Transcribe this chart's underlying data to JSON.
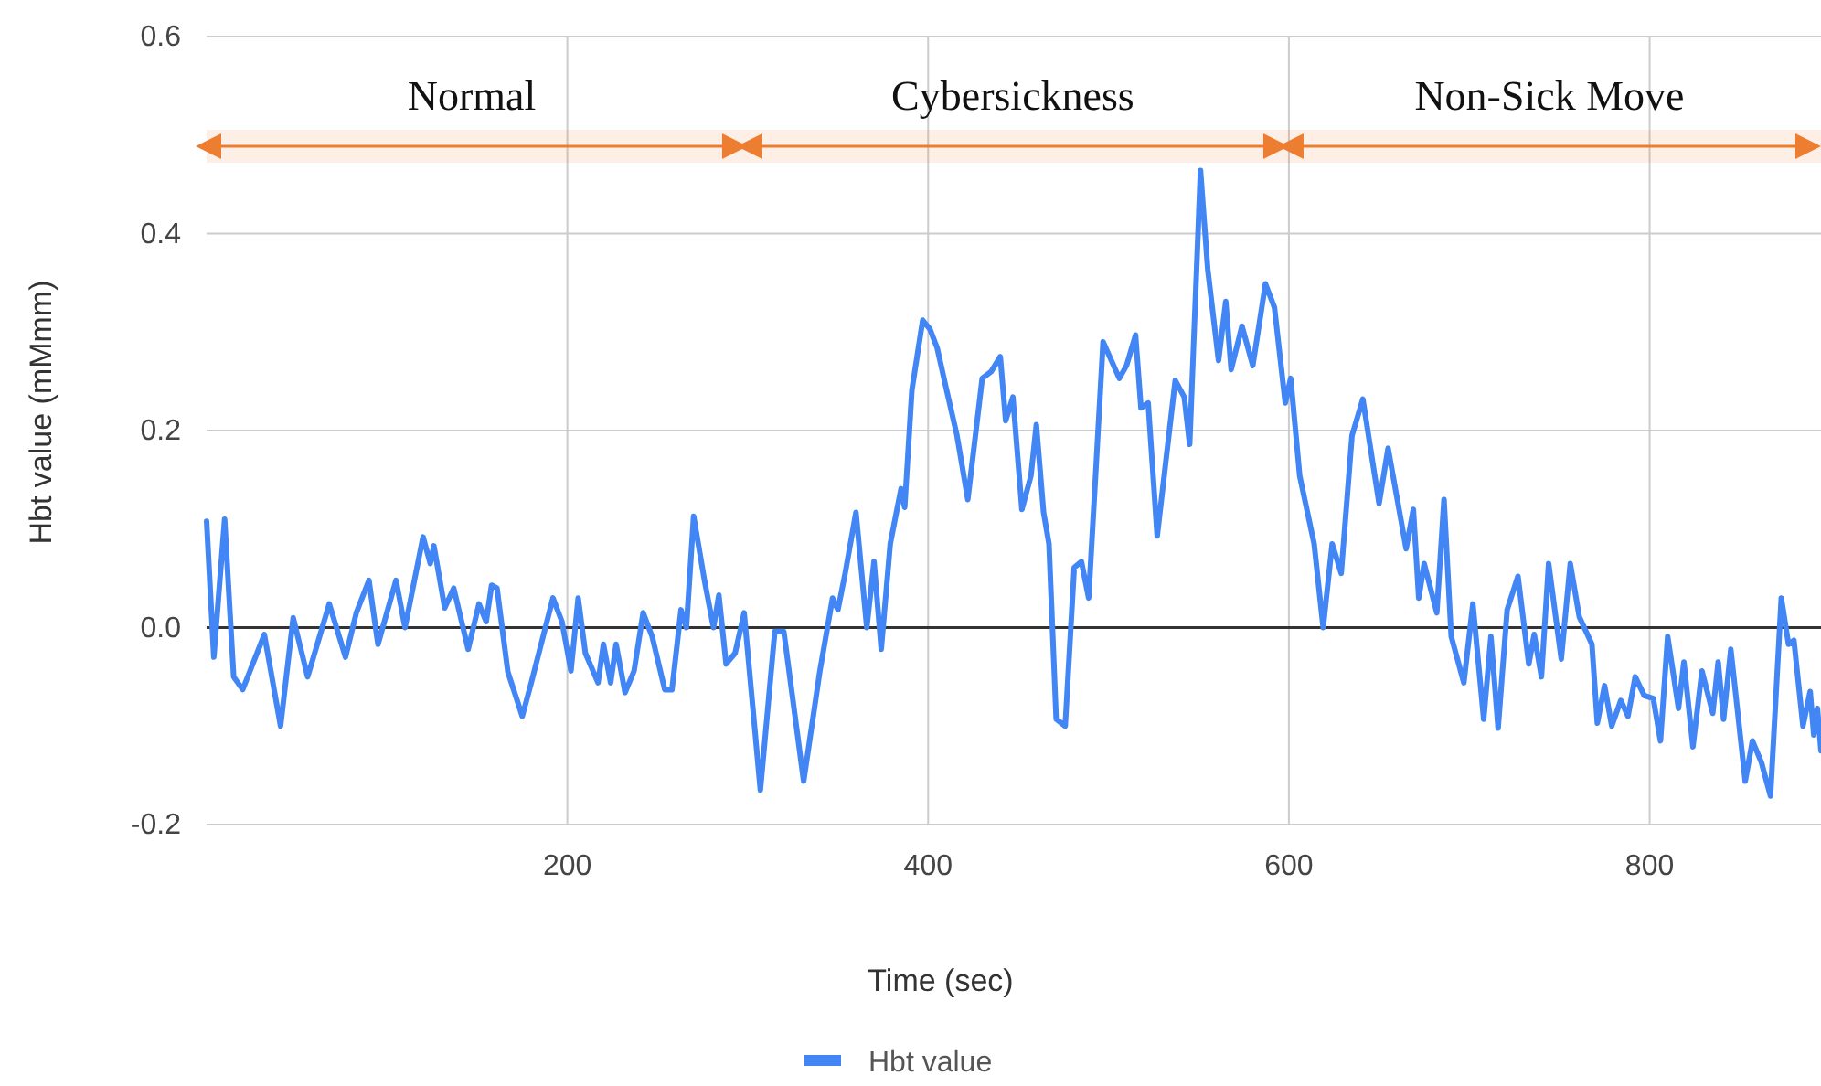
{
  "chart_data": {
    "type": "line",
    "xlabel": "Time (sec)",
    "ylabel": "Hbt value (mMmm)",
    "xlim": [
      0,
      895
    ],
    "xticks": [
      200,
      400,
      600,
      800
    ],
    "ylim": [
      -0.2,
      0.6
    ],
    "yticks": [
      {
        "value": -0.2,
        "label": "-0.2"
      },
      {
        "value": 0,
        "label": "0.0"
      },
      {
        "value": 0.2,
        "label": "0.2"
      },
      {
        "value": 0.4,
        "label": "0.4"
      },
      {
        "value": 0.6,
        "label": "0.6"
      }
    ],
    "grid": true,
    "legend": "bottom",
    "marker": "none",
    "line_style": "solid",
    "ref_lines": [
      {
        "axis": "y",
        "value": 0,
        "color": "#333333"
      }
    ],
    "bands": [
      {
        "axis": "x",
        "from": 0,
        "to": 300,
        "label": "Normal",
        "color": "#ed7d31"
      },
      {
        "axis": "x",
        "from": 300,
        "to": 600,
        "label": "Cybersickness",
        "color": "#ed7d31"
      },
      {
        "axis": "x",
        "from": 600,
        "to": 895,
        "label": "Non-Sick Move",
        "color": "#ed7d31"
      }
    ],
    "series": [
      {
        "name": "Hbt value",
        "color": "#4285f4",
        "x": [
          0,
          4,
          10,
          15,
          20,
          32,
          41,
          48,
          56,
          68,
          77,
          83,
          90,
          95,
          105,
          110,
          120,
          124,
          126,
          132,
          137,
          145,
          151,
          155,
          158,
          161,
          167,
          175,
          180,
          192,
          197,
          202,
          206,
          210,
          217,
          220,
          224,
          227,
          232,
          237,
          242,
          247,
          254,
          258,
          263,
          266,
          270,
          276,
          281,
          284,
          288,
          293,
          298,
          307,
          315,
          320,
          331,
          340,
          347,
          350,
          354,
          360,
          366,
          370,
          374,
          379,
          385,
          387,
          391,
          397,
          401,
          405,
          410,
          416,
          422,
          430,
          435,
          440,
          443,
          447,
          452,
          457,
          460,
          464,
          467,
          471,
          476,
          481,
          485,
          489,
          497,
          506,
          510,
          515,
          518,
          522,
          527,
          537,
          542,
          545,
          551,
          555,
          561,
          565,
          568,
          574,
          580,
          587,
          592,
          598,
          601,
          606,
          614,
          619,
          624,
          629,
          635,
          641,
          650,
          655,
          665,
          669,
          672,
          675,
          682,
          686,
          690,
          697,
          702,
          708,
          712,
          716,
          721,
          727,
          733,
          736,
          740,
          744,
          751,
          756,
          761,
          768,
          771,
          775,
          779,
          784,
          788,
          792,
          797,
          802,
          806,
          810,
          816,
          819,
          824,
          829,
          835,
          838,
          841,
          845,
          853,
          857,
          862,
          867,
          873,
          877,
          880,
          885,
          889,
          891,
          893,
          895
        ],
        "values": [
          0.108,
          -0.03,
          0.11,
          -0.05,
          -0.063,
          -0.007,
          -0.1,
          0.01,
          -0.05,
          0.024,
          -0.03,
          0.015,
          0.048,
          -0.017,
          0.048,
          0,
          0.092,
          0.065,
          0.083,
          0.02,
          0.04,
          -0.022,
          0.024,
          0.006,
          0.043,
          0.04,
          -0.045,
          -0.09,
          -0.056,
          0.03,
          0.006,
          -0.044,
          0.03,
          -0.026,
          -0.056,
          -0.017,
          -0.056,
          -0.017,
          -0.066,
          -0.044,
          0.015,
          -0.009,
          -0.063,
          -0.063,
          0.018,
          0,
          0.113,
          0.048,
          0,
          0.033,
          -0.037,
          -0.026,
          0.015,
          -0.165,
          -0.004,
          -0.004,
          -0.156,
          -0.044,
          0.03,
          0.018,
          0.055,
          0.117,
          0,
          0.067,
          -0.022,
          0.085,
          0.141,
          0.122,
          0.241,
          0.312,
          0.303,
          0.284,
          0.243,
          0.195,
          0.13,
          0.253,
          0.26,
          0.275,
          0.21,
          0.234,
          0.12,
          0.154,
          0.206,
          0.117,
          0.085,
          -0.093,
          -0.1,
          0.061,
          0.067,
          0.03,
          0.29,
          0.253,
          0.266,
          0.297,
          0.223,
          0.228,
          0.093,
          0.251,
          0.234,
          0.186,
          0.464,
          0.364,
          0.271,
          0.331,
          0.262,
          0.306,
          0.266,
          0.349,
          0.325,
          0.228,
          0.253,
          0.154,
          0.085,
          0,
          0.085,
          0.055,
          0.195,
          0.232,
          0.126,
          0.182,
          0.08,
          0.12,
          0.03,
          0.065,
          0.015,
          0.13,
          -0.009,
          -0.056,
          0.024,
          -0.093,
          -0.009,
          -0.102,
          0.018,
          0.052,
          -0.037,
          -0.007,
          -0.05,
          0.065,
          -0.032,
          0.065,
          0.011,
          -0.017,
          -0.097,
          -0.059,
          -0.1,
          -0.074,
          -0.09,
          -0.05,
          -0.069,
          -0.072,
          -0.115,
          -0.009,
          -0.082,
          -0.035,
          -0.121,
          -0.044,
          -0.087,
          -0.035,
          -0.093,
          -0.022,
          -0.156,
          -0.115,
          -0.137,
          -0.171,
          0.03,
          -0.017,
          -0.013,
          -0.1,
          -0.065,
          -0.109,
          -0.082,
          -0.125
        ]
      }
    ]
  }
}
